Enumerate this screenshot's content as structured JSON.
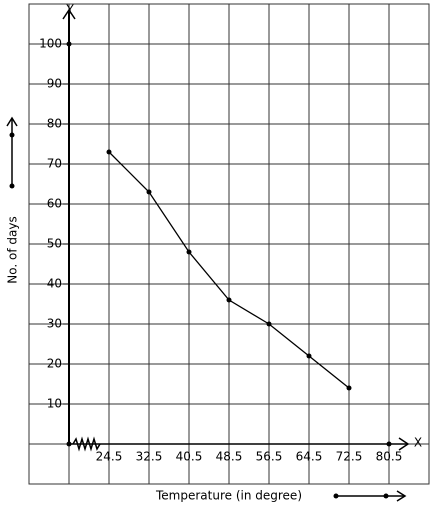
{
  "chart_data": {
    "type": "line",
    "x_label": "Temperature (in degree)",
    "y_label": "No. of days",
    "x_axis_name": "X",
    "y_axis_name": "Y",
    "x": [
      24.5,
      32.5,
      40.5,
      48.5,
      56.5,
      64.5,
      72.5
    ],
    "series": [
      {
        "color": "#000000",
        "values": [
          73,
          63,
          48,
          36,
          30,
          22,
          14
        ]
      }
    ],
    "xlim": [
      16.5,
      88.5
    ],
    "ylim": [
      0,
      110
    ],
    "xticks": [
      24.5,
      32.5,
      40.5,
      48.5,
      56.5,
      64.5,
      72.5,
      80.5
    ],
    "yticks": [
      10,
      20,
      30,
      40,
      50,
      60,
      70,
      80,
      90,
      100
    ],
    "grid": true
  }
}
